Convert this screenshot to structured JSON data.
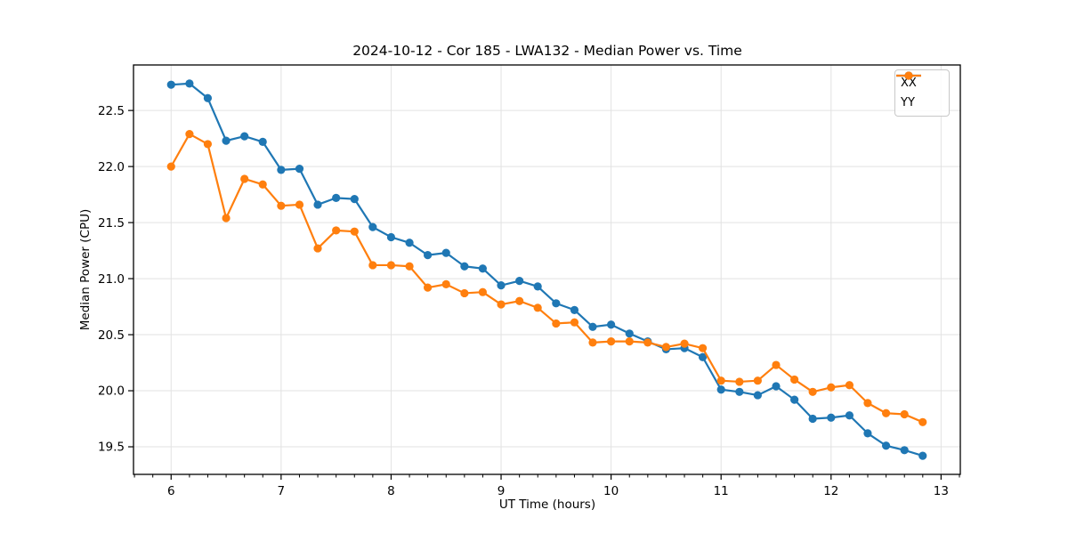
{
  "chart_data": {
    "type": "line",
    "title": "2024-10-12 - Cor 185 - LWA132 - Median Power vs. Time",
    "xlabel": "UT Time (hours)",
    "ylabel": "Median Power (CPU)",
    "legend_position": "upper right",
    "grid": true,
    "grid_color": "#e2e2e2",
    "xlim": [
      5.658,
      13.175
    ],
    "ylim": [
      19.254,
      22.906
    ],
    "x_ticks": [
      6,
      7,
      8,
      9,
      10,
      11,
      12,
      13
    ],
    "y_ticks": [
      19.5,
      20.0,
      20.5,
      21.0,
      21.5,
      22.0,
      22.5
    ],
    "x_minor_tick_step": 0.16667,
    "x": [
      6.0,
      6.167,
      6.333,
      6.5,
      6.667,
      6.833,
      7.0,
      7.167,
      7.333,
      7.5,
      7.667,
      7.833,
      8.0,
      8.167,
      8.333,
      8.5,
      8.667,
      8.833,
      9.0,
      9.167,
      9.333,
      9.5,
      9.667,
      9.833,
      10.0,
      10.167,
      10.333,
      10.5,
      10.667,
      10.833,
      11.0,
      11.167,
      11.333,
      11.5,
      11.667,
      11.833,
      12.0,
      12.167,
      12.333,
      12.5,
      12.667,
      12.833
    ],
    "series": [
      {
        "name": "XX",
        "color": "#1f77b4",
        "values": [
          22.73,
          22.74,
          22.61,
          22.23,
          22.27,
          22.22,
          21.97,
          21.98,
          21.66,
          21.72,
          21.71,
          21.46,
          21.37,
          21.32,
          21.21,
          21.23,
          21.11,
          21.09,
          20.94,
          20.98,
          20.93,
          20.78,
          20.72,
          20.57,
          20.59,
          20.51,
          20.44,
          20.37,
          20.38,
          20.3,
          20.01,
          19.99,
          19.96,
          20.04,
          19.92,
          19.75,
          19.76,
          19.78,
          19.62,
          19.51,
          19.47,
          19.42
        ]
      },
      {
        "name": "YY",
        "color": "#ff7f0e",
        "values": [
          22.0,
          22.29,
          22.2,
          21.54,
          21.89,
          21.84,
          21.65,
          21.66,
          21.27,
          21.43,
          21.42,
          21.12,
          21.12,
          21.11,
          20.92,
          20.95,
          20.87,
          20.88,
          20.77,
          20.8,
          20.74,
          20.6,
          20.61,
          20.43,
          20.44,
          20.44,
          20.43,
          20.39,
          20.42,
          20.38,
          20.09,
          20.08,
          20.09,
          20.23,
          20.1,
          19.99,
          20.03,
          20.05,
          19.89,
          19.8,
          19.79,
          19.72
        ]
      }
    ]
  }
}
